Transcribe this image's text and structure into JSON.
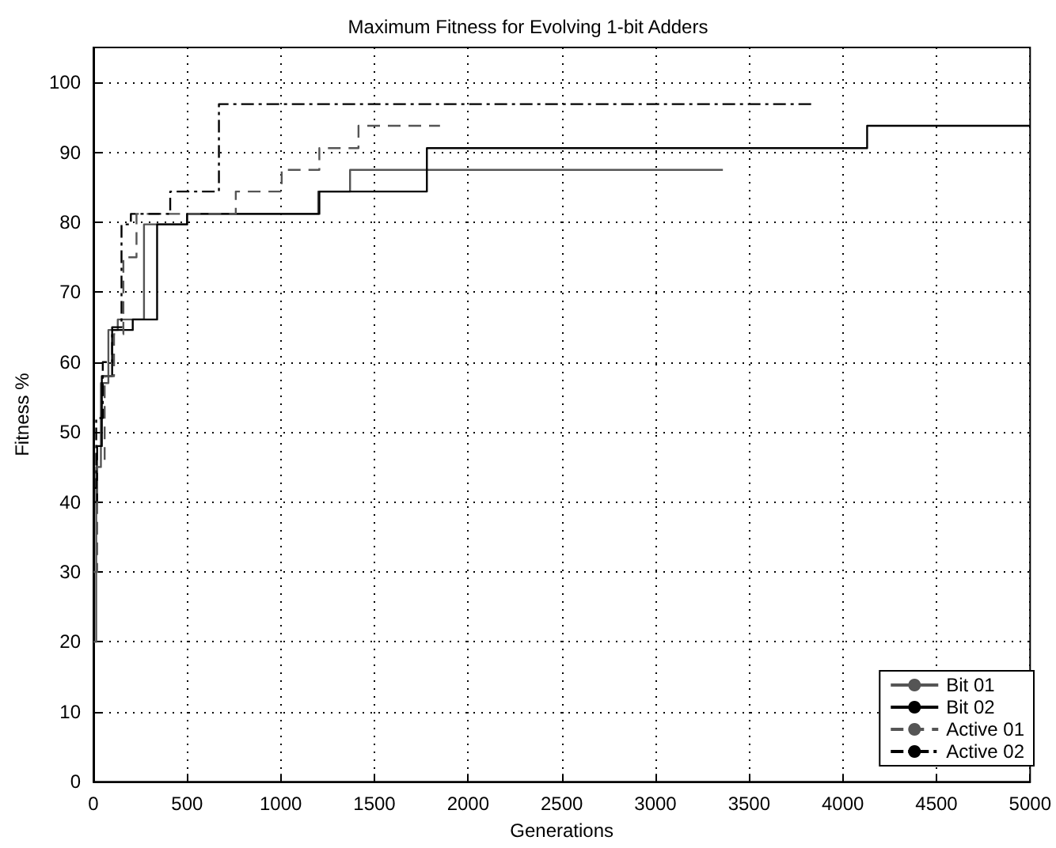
{
  "chart_data": {
    "type": "step",
    "title": "Maximum Fitness for Evolving 1-bit Adders",
    "xlabel": "Generations",
    "ylabel": "Fitness %",
    "xlim": [
      0,
      5000
    ],
    "xticks": [
      0,
      500,
      1000,
      1500,
      2000,
      2500,
      3000,
      3500,
      4000,
      4500,
      5000
    ],
    "ylim": [
      0,
      105
    ],
    "yticks": [
      0,
      10,
      20,
      30,
      40,
      50,
      60,
      70,
      80,
      90,
      100
    ],
    "grid": true,
    "legend": "bottom right",
    "marker": "none",
    "series": [
      {
        "name": "Bit 01",
        "color": "#555555",
        "line_style": "solid",
        "x": [
          0,
          15,
          40,
          80,
          130,
          270,
          500,
          1200,
          1370,
          3360
        ],
        "values": [
          20,
          45,
          57,
          64.6,
          66.1,
          79.7,
          81.2,
          84.4,
          87.5,
          87.5
        ]
      },
      {
        "name": "Bit 02",
        "color": "#000000",
        "line_style": "solid",
        "x": [
          0,
          20,
          45,
          100,
          210,
          340,
          500,
          1206,
          1780,
          4130,
          5000
        ],
        "values": [
          40,
          48,
          58,
          64.6,
          66.1,
          79.7,
          81.2,
          84.4,
          90.6,
          93.8,
          93.8
        ]
      },
      {
        "name": "Active 01",
        "color": "#555555",
        "line_style": "dashed",
        "x": [
          0,
          20,
          60,
          110,
          160,
          230,
          760,
          1005,
          1206,
          1415,
          1850
        ],
        "values": [
          30,
          46,
          58,
          64,
          75,
          81.2,
          84.4,
          87.5,
          90.6,
          93.8,
          93.8
        ]
      },
      {
        "name": "Active 02",
        "color": "#000000",
        "line_style": "dashdot",
        "x": [
          0,
          15,
          50,
          100,
          150,
          200,
          410,
          670,
          3840
        ],
        "values": [
          42,
          52,
          60,
          65,
          79.7,
          81.2,
          84.4,
          96.9,
          96.9
        ]
      }
    ]
  }
}
